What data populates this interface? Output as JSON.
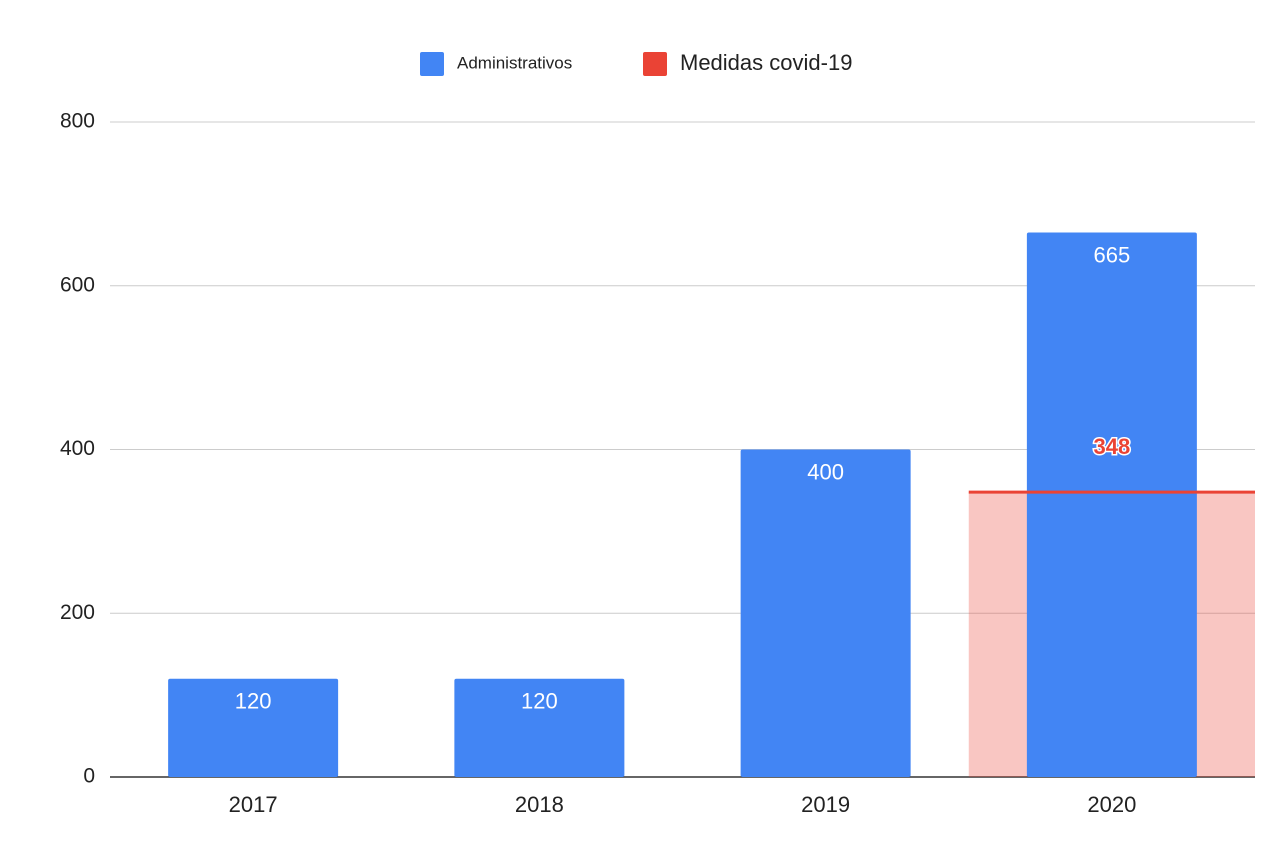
{
  "chart_data": {
    "type": "bar",
    "categories": [
      "2017",
      "2018",
      "2019",
      "2020"
    ],
    "series": [
      {
        "name": "Administrativos",
        "color": "#4285f4",
        "type": "bar",
        "values": [
          120,
          120,
          400,
          665
        ]
      },
      {
        "name": "Medidas covid-19",
        "color": "#ea4335",
        "type": "area",
        "values": [
          null,
          null,
          null,
          348
        ]
      }
    ],
    "ylim": [
      0,
      800
    ],
    "yticks": [
      0,
      200,
      400,
      600,
      800
    ],
    "grid": true,
    "legend": "top"
  }
}
